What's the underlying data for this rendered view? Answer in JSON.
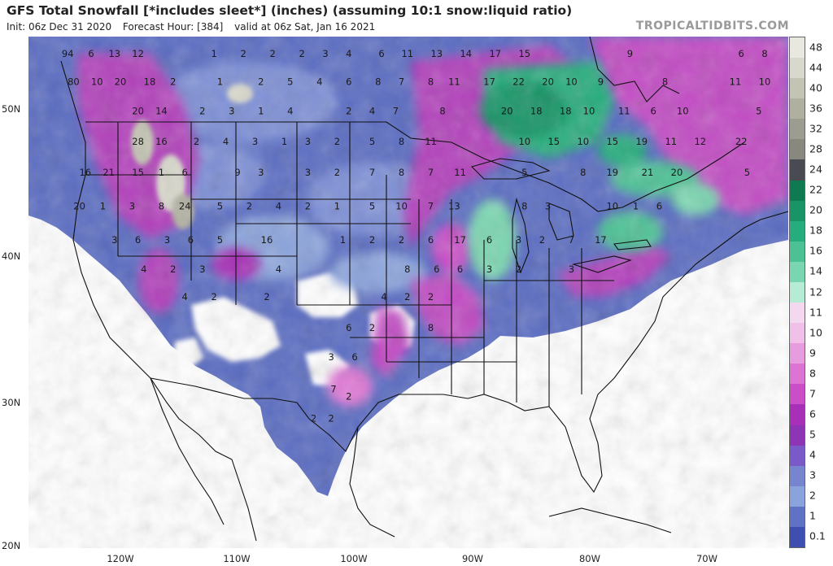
{
  "title": "GFS Total Snowfall [*includes sleet*] (inches) (assuming 10:1 snow:liquid ratio)",
  "init": "Init: 06z Dec 31 2020",
  "forecast_hour": "Forecast Hour: [384]",
  "valid": "valid at 06z Sat, Jan 16 2021",
  "brand": "TROPICALTIDBITS.COM",
  "lat_labels": [
    "50N",
    "40N",
    "30N",
    "20N"
  ],
  "lon_labels": [
    "120W",
    "110W",
    "100W",
    "90W",
    "80W",
    "70W"
  ],
  "colorbar": {
    "labels": [
      "48",
      "44",
      "40",
      "36",
      "32",
      "28",
      "24",
      "22",
      "20",
      "18",
      "16",
      "14",
      "12",
      "11",
      "10",
      "9",
      "8",
      "7",
      "6",
      "5",
      "4",
      "3",
      "2",
      "1",
      "0.1"
    ],
    "colors": [
      "#e8e8e0",
      "#d8d8cc",
      "#c4c4b4",
      "#b0b0a0",
      "#9c9c90",
      "#88887e",
      "#4a4a52",
      "#0f7a52",
      "#199466",
      "#26ad7d",
      "#4cc194",
      "#7ad6b0",
      "#b6ecd6",
      "#f4d8f0",
      "#f0c0e8",
      "#e89ce0",
      "#dd74d4",
      "#c94ec7",
      "#a830b8",
      "#8e35b5",
      "#7a5ac8",
      "#7784d0",
      "#8aa3dc",
      "#5f72c4",
      "#3f4fb0"
    ]
  },
  "map_values": [
    {
      "v": "94",
      "lon": -124.5,
      "lat": 53.6
    },
    {
      "v": "6",
      "lon": -122.5,
      "lat": 53.6
    },
    {
      "v": "13",
      "lon": -120.5,
      "lat": 53.6
    },
    {
      "v": "12",
      "lon": -118.5,
      "lat": 53.6
    },
    {
      "v": "1",
      "lon": -112.0,
      "lat": 53.6
    },
    {
      "v": "2",
      "lon": -109.5,
      "lat": 53.6
    },
    {
      "v": "2",
      "lon": -107.0,
      "lat": 53.6
    },
    {
      "v": "2",
      "lon": -104.5,
      "lat": 53.6
    },
    {
      "v": "3",
      "lon": -102.5,
      "lat": 53.6
    },
    {
      "v": "4",
      "lon": -100.5,
      "lat": 53.6
    },
    {
      "v": "6",
      "lon": -97.7,
      "lat": 53.6
    },
    {
      "v": "11",
      "lon": -95.5,
      "lat": 53.6
    },
    {
      "v": "13",
      "lon": -93.0,
      "lat": 53.6
    },
    {
      "v": "14",
      "lon": -90.5,
      "lat": 53.6
    },
    {
      "v": "17",
      "lon": -88.0,
      "lat": 53.6
    },
    {
      "v": "15",
      "lon": -85.5,
      "lat": 53.6
    },
    {
      "v": "9",
      "lon": -76.5,
      "lat": 53.6
    },
    {
      "v": "6",
      "lon": -67.0,
      "lat": 53.6
    },
    {
      "v": "8",
      "lon": -65.0,
      "lat": 53.6
    },
    {
      "v": "80",
      "lon": -124.0,
      "lat": 51.7
    },
    {
      "v": "10",
      "lon": -122.0,
      "lat": 51.7
    },
    {
      "v": "20",
      "lon": -120.0,
      "lat": 51.7
    },
    {
      "v": "18",
      "lon": -117.5,
      "lat": 51.7
    },
    {
      "v": "2",
      "lon": -115.5,
      "lat": 51.7
    },
    {
      "v": "1",
      "lon": -111.5,
      "lat": 51.7
    },
    {
      "v": "2",
      "lon": -108.0,
      "lat": 51.7
    },
    {
      "v": "5",
      "lon": -105.5,
      "lat": 51.7
    },
    {
      "v": "4",
      "lon": -103.0,
      "lat": 51.7
    },
    {
      "v": "6",
      "lon": -100.5,
      "lat": 51.7
    },
    {
      "v": "8",
      "lon": -98.0,
      "lat": 51.7
    },
    {
      "v": "7",
      "lon": -96.0,
      "lat": 51.7
    },
    {
      "v": "8",
      "lon": -93.5,
      "lat": 51.7
    },
    {
      "v": "11",
      "lon": -91.5,
      "lat": 51.7
    },
    {
      "v": "17",
      "lon": -88.5,
      "lat": 51.7
    },
    {
      "v": "22",
      "lon": -86.0,
      "lat": 51.7
    },
    {
      "v": "20",
      "lon": -83.5,
      "lat": 51.7
    },
    {
      "v": "10",
      "lon": -81.5,
      "lat": 51.7
    },
    {
      "v": "9",
      "lon": -79.0,
      "lat": 51.7
    },
    {
      "v": "8",
      "lon": -73.5,
      "lat": 51.7
    },
    {
      "v": "11",
      "lon": -67.5,
      "lat": 51.7
    },
    {
      "v": "10",
      "lon": -65.0,
      "lat": 51.7
    },
    {
      "v": "20",
      "lon": -118.5,
      "lat": 49.7
    },
    {
      "v": "14",
      "lon": -116.5,
      "lat": 49.7
    },
    {
      "v": "2",
      "lon": -113.0,
      "lat": 49.7
    },
    {
      "v": "3",
      "lon": -110.5,
      "lat": 49.7
    },
    {
      "v": "1",
      "lon": -108.0,
      "lat": 49.7
    },
    {
      "v": "4",
      "lon": -105.5,
      "lat": 49.7
    },
    {
      "v": "2",
      "lon": -100.5,
      "lat": 49.7
    },
    {
      "v": "4",
      "lon": -98.5,
      "lat": 49.7
    },
    {
      "v": "7",
      "lon": -96.5,
      "lat": 49.7
    },
    {
      "v": "8",
      "lon": -92.5,
      "lat": 49.7
    },
    {
      "v": "20",
      "lon": -87.0,
      "lat": 49.7
    },
    {
      "v": "18",
      "lon": -84.5,
      "lat": 49.7
    },
    {
      "v": "18",
      "lon": -82.0,
      "lat": 49.7
    },
    {
      "v": "10",
      "lon": -80.0,
      "lat": 49.7
    },
    {
      "v": "11",
      "lon": -77.0,
      "lat": 49.7
    },
    {
      "v": "6",
      "lon": -74.5,
      "lat": 49.7
    },
    {
      "v": "10",
      "lon": -72.0,
      "lat": 49.7
    },
    {
      "v": "5",
      "lon": -65.5,
      "lat": 49.7
    },
    {
      "v": "28",
      "lon": -118.5,
      "lat": 47.6
    },
    {
      "v": "16",
      "lon": -116.5,
      "lat": 47.6
    },
    {
      "v": "2",
      "lon": -113.5,
      "lat": 47.6
    },
    {
      "v": "4",
      "lon": -111.0,
      "lat": 47.6
    },
    {
      "v": "3",
      "lon": -108.5,
      "lat": 47.6
    },
    {
      "v": "1",
      "lon": -106.0,
      "lat": 47.6
    },
    {
      "v": "3",
      "lon": -104.0,
      "lat": 47.6
    },
    {
      "v": "2",
      "lon": -101.5,
      "lat": 47.6
    },
    {
      "v": "5",
      "lon": -98.5,
      "lat": 47.6
    },
    {
      "v": "8",
      "lon": -96.0,
      "lat": 47.6
    },
    {
      "v": "11",
      "lon": -93.5,
      "lat": 47.6
    },
    {
      "v": "10",
      "lon": -85.5,
      "lat": 47.6
    },
    {
      "v": "15",
      "lon": -83.0,
      "lat": 47.6
    },
    {
      "v": "10",
      "lon": -80.5,
      "lat": 47.6
    },
    {
      "v": "15",
      "lon": -78.0,
      "lat": 47.6
    },
    {
      "v": "19",
      "lon": -75.5,
      "lat": 47.6
    },
    {
      "v": "11",
      "lon": -73.0,
      "lat": 47.6
    },
    {
      "v": "12",
      "lon": -70.5,
      "lat": 47.6
    },
    {
      "v": "22",
      "lon": -67.0,
      "lat": 47.6
    },
    {
      "v": "16",
      "lon": -123.0,
      "lat": 45.5
    },
    {
      "v": "21",
      "lon": -121.0,
      "lat": 45.5
    },
    {
      "v": "15",
      "lon": -118.5,
      "lat": 45.5
    },
    {
      "v": "1",
      "lon": -116.5,
      "lat": 45.5
    },
    {
      "v": "6",
      "lon": -114.5,
      "lat": 45.5
    },
    {
      "v": "9",
      "lon": -110.0,
      "lat": 45.5
    },
    {
      "v": "3",
      "lon": -108.0,
      "lat": 45.5
    },
    {
      "v": "3",
      "lon": -104.0,
      "lat": 45.5
    },
    {
      "v": "2",
      "lon": -101.5,
      "lat": 45.5
    },
    {
      "v": "7",
      "lon": -98.5,
      "lat": 45.5
    },
    {
      "v": "8",
      "lon": -96.0,
      "lat": 45.5
    },
    {
      "v": "7",
      "lon": -93.5,
      "lat": 45.5
    },
    {
      "v": "11",
      "lon": -91.0,
      "lat": 45.5
    },
    {
      "v": "5",
      "lon": -85.5,
      "lat": 45.5
    },
    {
      "v": "8",
      "lon": -80.5,
      "lat": 45.5
    },
    {
      "v": "19",
      "lon": -78.0,
      "lat": 45.5
    },
    {
      "v": "21",
      "lon": -75.0,
      "lat": 45.5
    },
    {
      "v": "20",
      "lon": -72.5,
      "lat": 45.5
    },
    {
      "v": "5",
      "lon": -66.5,
      "lat": 45.5
    },
    {
      "v": "20",
      "lon": -123.5,
      "lat": 43.2
    },
    {
      "v": "1",
      "lon": -121.5,
      "lat": 43.2
    },
    {
      "v": "3",
      "lon": -119.0,
      "lat": 43.2
    },
    {
      "v": "8",
      "lon": -116.5,
      "lat": 43.2
    },
    {
      "v": "24",
      "lon": -114.5,
      "lat": 43.2
    },
    {
      "v": "5",
      "lon": -111.5,
      "lat": 43.2
    },
    {
      "v": "2",
      "lon": -109.0,
      "lat": 43.2
    },
    {
      "v": "4",
      "lon": -106.5,
      "lat": 43.2
    },
    {
      "v": "2",
      "lon": -104.0,
      "lat": 43.2
    },
    {
      "v": "1",
      "lon": -101.5,
      "lat": 43.2
    },
    {
      "v": "5",
      "lon": -98.5,
      "lat": 43.2
    },
    {
      "v": "10",
      "lon": -96.0,
      "lat": 43.2
    },
    {
      "v": "7",
      "lon": -93.5,
      "lat": 43.2
    },
    {
      "v": "13",
      "lon": -91.5,
      "lat": 43.2
    },
    {
      "v": "8",
      "lon": -85.5,
      "lat": 43.2
    },
    {
      "v": "3",
      "lon": -83.5,
      "lat": 43.2
    },
    {
      "v": "10",
      "lon": -78.0,
      "lat": 43.2
    },
    {
      "v": "1",
      "lon": -76.0,
      "lat": 43.2
    },
    {
      "v": "6",
      "lon": -74.0,
      "lat": 43.2
    },
    {
      "v": "3",
      "lon": -120.5,
      "lat": 40.9
    },
    {
      "v": "6",
      "lon": -118.5,
      "lat": 40.9
    },
    {
      "v": "3",
      "lon": -116.0,
      "lat": 40.9
    },
    {
      "v": "6",
      "lon": -114.0,
      "lat": 40.9
    },
    {
      "v": "5",
      "lon": -111.5,
      "lat": 40.9
    },
    {
      "v": "16",
      "lon": -107.5,
      "lat": 40.9
    },
    {
      "v": "1",
      "lon": -101.0,
      "lat": 40.9
    },
    {
      "v": "2",
      "lon": -98.5,
      "lat": 40.9
    },
    {
      "v": "2",
      "lon": -96.0,
      "lat": 40.9
    },
    {
      "v": "6",
      "lon": -93.5,
      "lat": 40.9
    },
    {
      "v": "17",
      "lon": -91.0,
      "lat": 40.9
    },
    {
      "v": "6",
      "lon": -88.5,
      "lat": 40.9
    },
    {
      "v": "3",
      "lon": -86.0,
      "lat": 40.9
    },
    {
      "v": "2",
      "lon": -84.0,
      "lat": 40.9
    },
    {
      "v": "7",
      "lon": -81.5,
      "lat": 40.9
    },
    {
      "v": "17",
      "lon": -79.0,
      "lat": 40.9
    },
    {
      "v": "4",
      "lon": -118.0,
      "lat": 38.9
    },
    {
      "v": "2",
      "lon": -115.5,
      "lat": 38.9
    },
    {
      "v": "3",
      "lon": -113.0,
      "lat": 38.9
    },
    {
      "v": "4",
      "lon": -106.5,
      "lat": 38.9
    },
    {
      "v": "8",
      "lon": -95.5,
      "lat": 38.9
    },
    {
      "v": "6",
      "lon": -93.0,
      "lat": 38.9
    },
    {
      "v": "6",
      "lon": -91.0,
      "lat": 38.9
    },
    {
      "v": "3",
      "lon": -88.5,
      "lat": 38.9
    },
    {
      "v": "2",
      "lon": -86.0,
      "lat": 38.9
    },
    {
      "v": "3",
      "lon": -81.5,
      "lat": 38.9
    },
    {
      "v": "4",
      "lon": -114.5,
      "lat": 37.0
    },
    {
      "v": "2",
      "lon": -112.0,
      "lat": 37.0
    },
    {
      "v": "2",
      "lon": -107.5,
      "lat": 37.0
    },
    {
      "v": "4",
      "lon": -97.5,
      "lat": 37.0
    },
    {
      "v": "2",
      "lon": -95.5,
      "lat": 37.0
    },
    {
      "v": "2",
      "lon": -93.5,
      "lat": 37.0
    },
    {
      "v": "6",
      "lon": -100.5,
      "lat": 34.9
    },
    {
      "v": "2",
      "lon": -98.5,
      "lat": 34.9
    },
    {
      "v": "8",
      "lon": -93.5,
      "lat": 34.9
    },
    {
      "v": "3",
      "lon": -102.0,
      "lat": 32.9
    },
    {
      "v": "6",
      "lon": -100.0,
      "lat": 32.9
    },
    {
      "v": "7",
      "lon": -101.8,
      "lat": 30.7
    },
    {
      "v": "2",
      "lon": -100.5,
      "lat": 30.2
    },
    {
      "v": "2",
      "lon": -103.5,
      "lat": 28.7
    },
    {
      "v": "2",
      "lon": -102.0,
      "lat": 28.7
    }
  ]
}
